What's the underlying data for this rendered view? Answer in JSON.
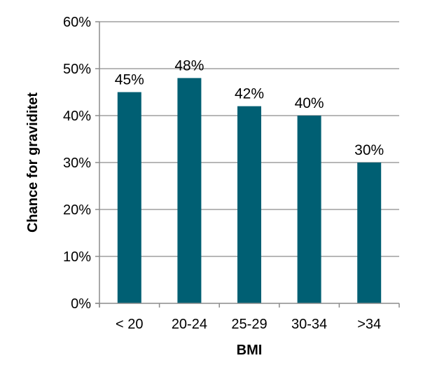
{
  "chart_data": {
    "type": "bar",
    "title": "",
    "xlabel": "BMI",
    "ylabel": "Chance for graviditet",
    "categories": [
      "< 20",
      "20-24",
      "25-29",
      "30-34",
      ">34"
    ],
    "values": [
      45,
      48,
      42,
      40,
      30
    ],
    "data_labels": [
      "45%",
      "48%",
      "42%",
      "40%",
      "30%"
    ],
    "ylim": [
      0,
      60
    ],
    "y_ticks": [
      0,
      10,
      20,
      30,
      40,
      50,
      60
    ],
    "y_tick_labels": [
      "0%",
      "10%",
      "20%",
      "30%",
      "40%",
      "50%",
      "60%"
    ],
    "grid": true,
    "legend": "none",
    "bar_color": "#005f73",
    "grid_color": "#8c8c8c",
    "axis_color": "#8c8c8c"
  }
}
